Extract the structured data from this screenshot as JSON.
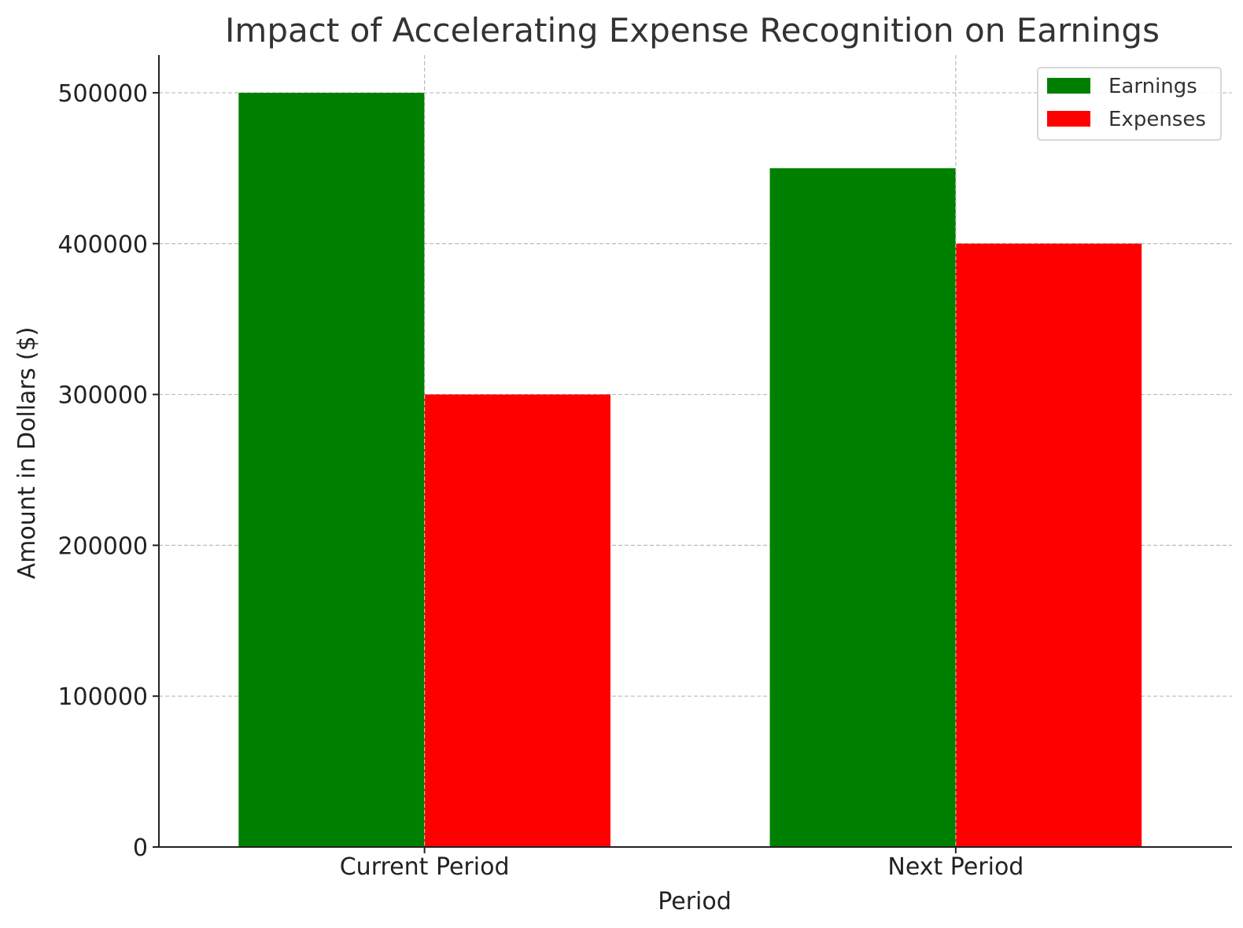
{
  "chart_data": {
    "type": "bar",
    "title": "Impact of Accelerating Expense Recognition on Earnings",
    "xlabel": "Period",
    "ylabel": "Amount in Dollars ($)",
    "categories": [
      "Current Period",
      "Next Period"
    ],
    "series": [
      {
        "name": "Earnings",
        "values": [
          500000,
          450000
        ],
        "color": "#008000"
      },
      {
        "name": "Expenses",
        "values": [
          300000,
          400000
        ],
        "color": "#ff0000"
      }
    ],
    "ylim": [
      0,
      525000
    ],
    "yticks": [
      0,
      100000,
      200000,
      300000,
      400000,
      500000
    ],
    "grid": true,
    "legend_position": "top-right"
  }
}
